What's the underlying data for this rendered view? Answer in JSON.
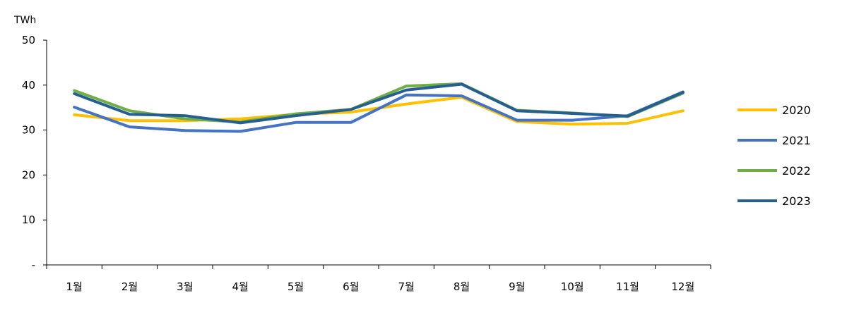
{
  "chart_data": {
    "type": "line",
    "unit": "TWh",
    "categories": [
      "1월",
      "2월",
      "3월",
      "4월",
      "5월",
      "6월",
      "7월",
      "8월",
      "9월",
      "10월",
      "11월",
      "12월"
    ],
    "y_ticks": [
      "-",
      "10",
      "20",
      "30",
      "40",
      "50"
    ],
    "ylim": [
      0,
      50
    ],
    "grid": false,
    "legend_position": "right",
    "series": [
      {
        "name": "2020",
        "color": "#FFC000",
        "values": [
          33.4,
          32.1,
          32.1,
          32.5,
          33.5,
          34.0,
          35.8,
          37.3,
          31.9,
          31.3,
          31.5,
          34.3
        ]
      },
      {
        "name": "2021",
        "color": "#4472C4",
        "values": [
          35.1,
          30.7,
          29.9,
          29.7,
          31.7,
          31.7,
          37.8,
          37.6,
          32.2,
          32.2,
          33.2,
          38.5
        ]
      },
      {
        "name": "2022",
        "color": "#70AD47",
        "values": [
          38.8,
          34.3,
          32.5,
          31.8,
          33.6,
          34.6,
          39.8,
          40.3,
          34.4,
          33.8,
          33.0,
          38.2
        ]
      },
      {
        "name": "2023",
        "color": "#255E91",
        "values": [
          38.1,
          33.5,
          33.2,
          31.6,
          33.2,
          34.6,
          38.9,
          40.2,
          34.3,
          33.7,
          33.1,
          38.4
        ]
      }
    ]
  }
}
